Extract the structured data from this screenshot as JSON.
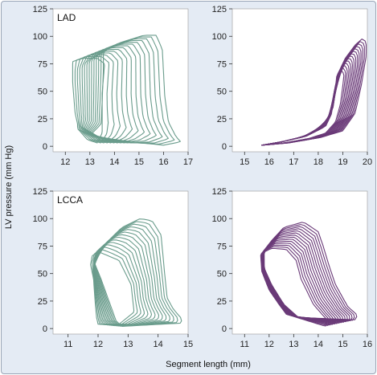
{
  "figure": {
    "ylabel": "LV pressure (mm Hg)",
    "xlabel": "Segment length (mm)",
    "colors": {
      "green": "#6a9c8c",
      "purple": "#6a3a78",
      "frame_bg": "#e4ebf4",
      "plot_bg": "#ffffff"
    }
  },
  "chart_data": [
    {
      "type": "line",
      "panel": "top-left",
      "title": "LAD",
      "color": "#6a9c8c",
      "xlim": [
        11.5,
        17
      ],
      "ylim": [
        -5,
        125
      ],
      "xticks": [
        12,
        13,
        14,
        15,
        16,
        17
      ],
      "yticks": [
        0,
        25,
        50,
        75,
        100,
        125
      ],
      "loop_family": {
        "count": 14,
        "x_shift_per_loop": -0.18,
        "outline_first": [
          [
            13.1,
            12
          ],
          [
            13.4,
            8
          ],
          [
            15.1,
            3
          ],
          [
            16.0,
            1
          ],
          [
            16.7,
            4
          ],
          [
            16.5,
            9
          ],
          [
            16.2,
            22
          ],
          [
            16.05,
            45
          ],
          [
            15.95,
            88
          ],
          [
            15.7,
            101
          ],
          [
            15.2,
            101
          ],
          [
            14.2,
            94
          ],
          [
            13.55,
            86
          ],
          [
            13.55,
            70
          ],
          [
            13.5,
            40
          ],
          [
            13.45,
            20
          ],
          [
            13.1,
            12
          ]
        ],
        "outline_last": [
          [
            12.5,
            20
          ],
          [
            12.5,
            16
          ],
          [
            12.9,
            6
          ],
          [
            13.3,
            3
          ],
          [
            13.5,
            12
          ],
          [
            13.5,
            48
          ],
          [
            13.6,
            75
          ],
          [
            13.3,
            80
          ],
          [
            12.7,
            80
          ],
          [
            12.3,
            77
          ],
          [
            12.3,
            58
          ],
          [
            12.4,
            30
          ],
          [
            12.5,
            20
          ]
        ]
      }
    },
    {
      "type": "line",
      "panel": "top-right",
      "title": "",
      "color": "#6a3a78",
      "xlim": [
        14.5,
        20
      ],
      "ylim": [
        -5,
        125
      ],
      "xticks": [
        15,
        16,
        17,
        18,
        19,
        20
      ],
      "yticks": [
        0,
        25,
        50,
        75,
        100,
        125
      ],
      "loop_family": {
        "count": 14,
        "x_shift_per_loop": -0.08,
        "outline_first": [
          [
            15.7,
            1
          ],
          [
            16.8,
            3
          ],
          [
            18.1,
            8
          ],
          [
            19.0,
            14
          ],
          [
            19.5,
            30
          ],
          [
            19.75,
            55
          ],
          [
            19.95,
            82
          ],
          [
            19.95,
            95
          ],
          [
            19.8,
            98
          ],
          [
            19.5,
            92
          ],
          [
            19.1,
            80
          ],
          [
            18.8,
            66
          ],
          [
            18.65,
            50
          ],
          [
            18.55,
            30
          ],
          [
            18.3,
            18
          ],
          [
            17.5,
            9
          ],
          [
            16.5,
            4
          ],
          [
            15.7,
            1
          ]
        ],
        "outline_last": [
          [
            15.7,
            1
          ],
          [
            16.6,
            3
          ],
          [
            17.6,
            7
          ],
          [
            18.3,
            12
          ],
          [
            18.7,
            22
          ],
          [
            18.9,
            38
          ],
          [
            19.0,
            55
          ],
          [
            19.05,
            66
          ],
          [
            18.9,
            70
          ],
          [
            18.75,
            64
          ],
          [
            18.7,
            50
          ],
          [
            18.6,
            35
          ],
          [
            18.3,
            20
          ],
          [
            17.4,
            9
          ],
          [
            16.5,
            4
          ],
          [
            15.7,
            1
          ]
        ]
      }
    },
    {
      "type": "line",
      "panel": "bottom-left",
      "title": "LCCA",
      "color": "#6a9c8c",
      "xlim": [
        10.5,
        15
      ],
      "ylim": [
        -5,
        125
      ],
      "xticks": [
        11,
        12,
        13,
        14,
        15
      ],
      "yticks": [
        0,
        25,
        50,
        75,
        100,
        125
      ],
      "loop_family": {
        "count": 14,
        "x_shift_per_loop": -0.1,
        "outline_first": [
          [
            12.8,
            2
          ],
          [
            14.8,
            5
          ],
          [
            14.75,
            10
          ],
          [
            14.5,
            18
          ],
          [
            14.3,
            28
          ],
          [
            14.2,
            55
          ],
          [
            14.1,
            85
          ],
          [
            13.8,
            98
          ],
          [
            13.4,
            100
          ],
          [
            12.8,
            92
          ],
          [
            12.35,
            80
          ],
          [
            11.95,
            70
          ],
          [
            11.85,
            62
          ],
          [
            11.95,
            55
          ],
          [
            12.1,
            45
          ],
          [
            12.6,
            7
          ],
          [
            12.8,
            2
          ]
        ],
        "outline_last": [
          [
            12.0,
            4
          ],
          [
            12.7,
            4
          ],
          [
            13.2,
            15
          ],
          [
            13.1,
            40
          ],
          [
            12.7,
            62
          ],
          [
            12.0,
            70
          ],
          [
            11.8,
            66
          ],
          [
            11.75,
            58
          ],
          [
            11.85,
            45
          ],
          [
            11.9,
            25
          ],
          [
            11.95,
            10
          ],
          [
            12.0,
            4
          ]
        ]
      }
    },
    {
      "type": "line",
      "panel": "bottom-right",
      "title": "",
      "color": "#6a3a78",
      "xlim": [
        10.5,
        16
      ],
      "ylim": [
        -5,
        125
      ],
      "xticks": [
        11,
        12,
        13,
        14,
        15,
        16
      ],
      "yticks": [
        0,
        25,
        50,
        75,
        100,
        125
      ],
      "loop_family": {
        "count": 14,
        "x_shift_per_loop": -0.08,
        "outline_first": [
          [
            13.2,
            10
          ],
          [
            15.5,
            8
          ],
          [
            15.6,
            12
          ],
          [
            15.2,
            20
          ],
          [
            14.7,
            40
          ],
          [
            14.4,
            60
          ],
          [
            14.2,
            75
          ],
          [
            14.0,
            88
          ],
          [
            13.4,
            97
          ],
          [
            12.6,
            92
          ],
          [
            12.1,
            80
          ],
          [
            11.8,
            70
          ],
          [
            11.8,
            55
          ],
          [
            12.1,
            40
          ],
          [
            12.6,
            22
          ],
          [
            13.2,
            10
          ]
        ],
        "outline_last": [
          [
            12.7,
            13
          ],
          [
            14.3,
            2
          ],
          [
            14.35,
            8
          ],
          [
            13.8,
            22
          ],
          [
            13.3,
            45
          ],
          [
            13.1,
            62
          ],
          [
            12.7,
            72
          ],
          [
            12.1,
            73
          ],
          [
            11.65,
            68
          ],
          [
            11.7,
            52
          ],
          [
            12.0,
            35
          ],
          [
            12.4,
            22
          ],
          [
            12.7,
            13
          ]
        ]
      }
    }
  ]
}
